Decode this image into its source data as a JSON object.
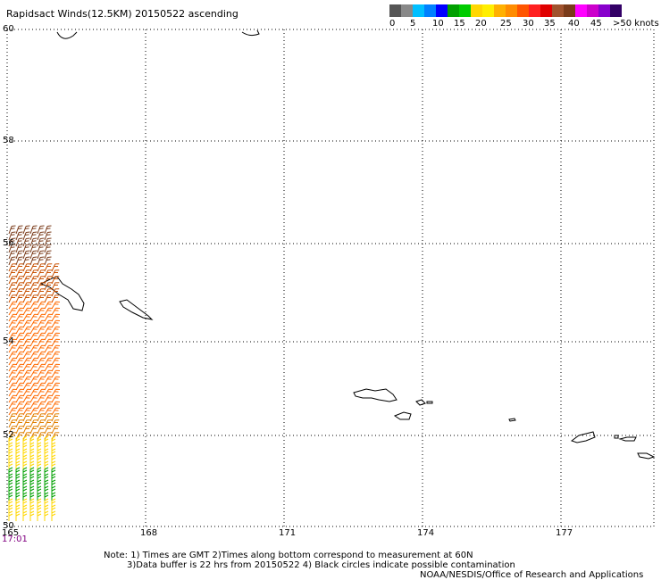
{
  "title": "Rapidsact Winds(12.5KM) 20150522 ascending",
  "colorbar": {
    "colors": [
      "#555555",
      "#888888",
      "#00bfff",
      "#0080ff",
      "#0000ff",
      "#00a000",
      "#00cc00",
      "#ffd700",
      "#ffee00",
      "#ffb000",
      "#ff8c00",
      "#ff5500",
      "#ff2020",
      "#e00000",
      "#a0522d",
      "#7a3b1a",
      "#ff00ff",
      "#cc00cc",
      "#8800cc",
      "#330066"
    ],
    "labels": [
      "0",
      "5",
      "10",
      "15",
      "20",
      "25",
      "30",
      "35",
      "40",
      "45",
      ">50 knots"
    ]
  },
  "lat_labels": [
    "60",
    "58",
    "56",
    "54",
    "52",
    "50"
  ],
  "lon_labels": [
    "165",
    "168",
    "171",
    "174",
    "177"
  ],
  "time_label": "17:01",
  "notes": {
    "line1": "Note: 1) Times are GMT 2)Times along bottom correspond to measurement at 60N",
    "line2": "3)Data buffer is 22 hrs from 20150522 4) Black circles indicate possible contamination",
    "line3": "NOAA/NESDIS/Office of Research and Applications"
  }
}
